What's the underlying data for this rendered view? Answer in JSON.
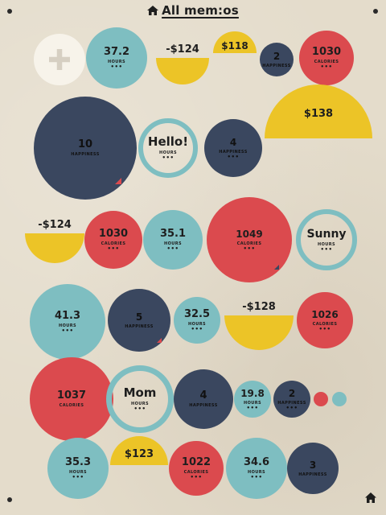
{
  "title": "All mem:os",
  "colors": {
    "teal": "#7ebec1",
    "navy": "#3a475f",
    "red": "#db4a4e",
    "yellow": "#ecc427",
    "cream": "#f7f3ea",
    "paper": "#e4dccb",
    "text_dark": "#1e1e1e"
  },
  "memos": [
    {
      "name": "add-memo-button",
      "shape": "add",
      "icon": "plus-icon",
      "color": "cream"
    },
    {
      "name": "memo-hours-37-2",
      "shape": "circle",
      "color": "teal",
      "value": "37.2",
      "unit": "HOURS",
      "dots": "•••"
    },
    {
      "name": "memo-money-neg-124-a",
      "shape": "bowl",
      "color": "yellow",
      "value": "-$124"
    },
    {
      "name": "memo-money-118",
      "shape": "dome",
      "color": "yellow",
      "value": "$118"
    },
    {
      "name": "memo-happiness-2-a",
      "shape": "circle",
      "color": "navy",
      "value": "2",
      "unit": "HAPPINESS"
    },
    {
      "name": "memo-calories-1030-a",
      "shape": "circle",
      "color": "red",
      "value": "1030",
      "unit": "CALORIES",
      "dots": "•••"
    },
    {
      "name": "memo-happiness-10",
      "shape": "circle",
      "color": "navy",
      "value": "10",
      "unit": "HAPPINESS",
      "flag": "red"
    },
    {
      "name": "memo-hours-hello",
      "shape": "ring",
      "color": "teal",
      "value": "Hello!",
      "unit": "HOURS",
      "dots": "•••"
    },
    {
      "name": "memo-happiness-4-a",
      "shape": "circle",
      "color": "navy",
      "value": "4",
      "unit": "HAPPINESS",
      "dots": "•••"
    },
    {
      "name": "memo-money-138",
      "shape": "dome",
      "color": "yellow",
      "value": "$138"
    },
    {
      "name": "memo-money-neg-124-b",
      "shape": "bowl",
      "color": "yellow",
      "value": "-$124"
    },
    {
      "name": "memo-calories-1030-b",
      "shape": "circle",
      "color": "red",
      "value": "1030",
      "unit": "CALORIES",
      "dots": "•••"
    },
    {
      "name": "memo-hours-35-1",
      "shape": "circle",
      "color": "teal",
      "value": "35.1",
      "unit": "HOURS",
      "dots": "•••"
    },
    {
      "name": "memo-calories-1049",
      "shape": "circle",
      "color": "red",
      "value": "1049",
      "unit": "CALORIES",
      "dots": "•••",
      "flag": "navy"
    },
    {
      "name": "memo-hours-sunny",
      "shape": "ring",
      "color": "teal",
      "value": "Sunny",
      "unit": "HOURS",
      "dots": "•••"
    },
    {
      "name": "memo-hours-41-3",
      "shape": "circle",
      "color": "teal",
      "value": "41.3",
      "unit": "HOURS",
      "dots": "•••"
    },
    {
      "name": "memo-happiness-5",
      "shape": "circle",
      "color": "navy",
      "value": "5",
      "unit": "HAPPINESS",
      "flag": "red"
    },
    {
      "name": "memo-hours-32-5",
      "shape": "circle",
      "color": "teal",
      "value": "32.5",
      "unit": "HOURS",
      "dots": "•••"
    },
    {
      "name": "memo-money-neg-128",
      "shape": "bowl",
      "color": "yellow",
      "value": "-$128"
    },
    {
      "name": "memo-calories-1026",
      "shape": "circle",
      "color": "red",
      "value": "1026",
      "unit": "CALORIES",
      "dots": "•••"
    },
    {
      "name": "memo-calories-1037",
      "shape": "circle",
      "color": "red",
      "value": "1037",
      "unit": "CALORIES"
    },
    {
      "name": "memo-hours-mom",
      "shape": "ring",
      "color": "teal",
      "value": "Mom",
      "unit": "HOURS",
      "dots": "•••"
    },
    {
      "name": "memo-happiness-4-b",
      "shape": "circle",
      "color": "navy",
      "value": "4",
      "unit": "HAPPINESS"
    },
    {
      "name": "memo-hours-19-8",
      "shape": "circle",
      "color": "teal",
      "value": "19.8",
      "unit": "HOURS",
      "dots": "•••"
    },
    {
      "name": "memo-happiness-2-b",
      "shape": "circle",
      "color": "navy",
      "value": "2",
      "unit": "HAPPINESS",
      "dots": "•••"
    },
    {
      "name": "memo-mini-red",
      "shape": "circle",
      "color": "red"
    },
    {
      "name": "memo-mini-teal",
      "shape": "circle",
      "color": "teal"
    },
    {
      "name": "memo-hours-35-3",
      "shape": "circle",
      "color": "teal",
      "value": "35.3",
      "unit": "HOURS",
      "dots": "•••"
    },
    {
      "name": "memo-money-123",
      "shape": "dome",
      "color": "yellow",
      "value": "$123"
    },
    {
      "name": "memo-calories-1022",
      "shape": "circle",
      "color": "red",
      "value": "1022",
      "unit": "CALORIES",
      "dots": "•••"
    },
    {
      "name": "memo-hours-34-6",
      "shape": "circle",
      "color": "teal",
      "value": "34.6",
      "unit": "HOURS",
      "dots": "•••"
    },
    {
      "name": "memo-happiness-3",
      "shape": "circle",
      "color": "navy",
      "value": "3",
      "unit": "HAPPINESS"
    }
  ]
}
